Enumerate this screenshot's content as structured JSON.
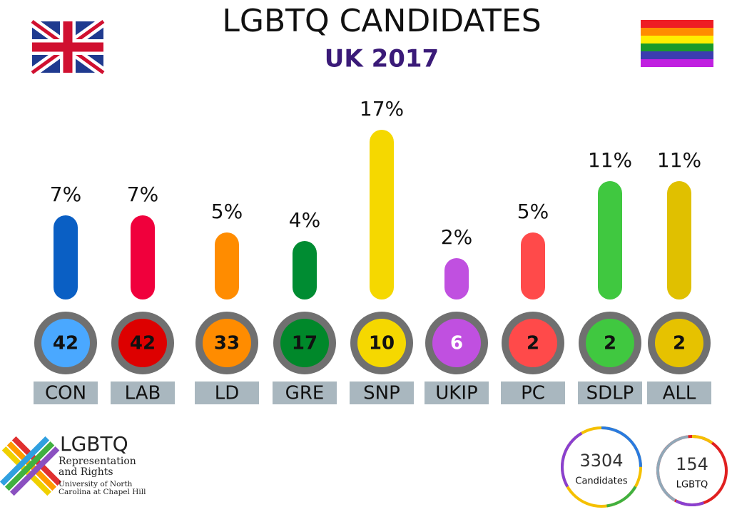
{
  "chart_data": {
    "type": "pill",
    "title": "LGBTQ CANDIDATES",
    "subtitle": "UK 2017",
    "categories": [
      "CON",
      "LAB",
      "LD",
      "GRE",
      "SNP",
      "UKIP",
      "PC",
      "SDLP",
      "ALL"
    ],
    "values": [
      7,
      7,
      5,
      4,
      17,
      2,
      5,
      11,
      11
    ],
    "value_labels": [
      "7%",
      "7%",
      "5%",
      "4%",
      "17%",
      "2%",
      "5%",
      "11%",
      "11%"
    ],
    "counts": [
      42,
      42,
      33,
      17,
      10,
      6,
      2,
      2,
      2
    ],
    "colors": [
      "#0a5fc4",
      "#f0003c",
      "#ff8c00",
      "#008c32",
      "#f5d800",
      "#c050e0",
      "#ff4a4a",
      "#40c840",
      "#e0c000"
    ],
    "circle_colors": [
      "#4aa8ff",
      "#dd0000",
      "#ff8c00",
      "#00882a",
      "#f5d800",
      "#c050e0",
      "#ff4a4a",
      "#40c840",
      "#e6c200"
    ],
    "totals": [
      {
        "value": "3304",
        "label": "Candidates"
      },
      {
        "value": "154",
        "label": "LGBTQ"
      }
    ],
    "logo": {
      "title": "LGBTQ",
      "subtitle": "Representation and Rights",
      "org": "University of North Carolina at Chapel Hill"
    }
  }
}
